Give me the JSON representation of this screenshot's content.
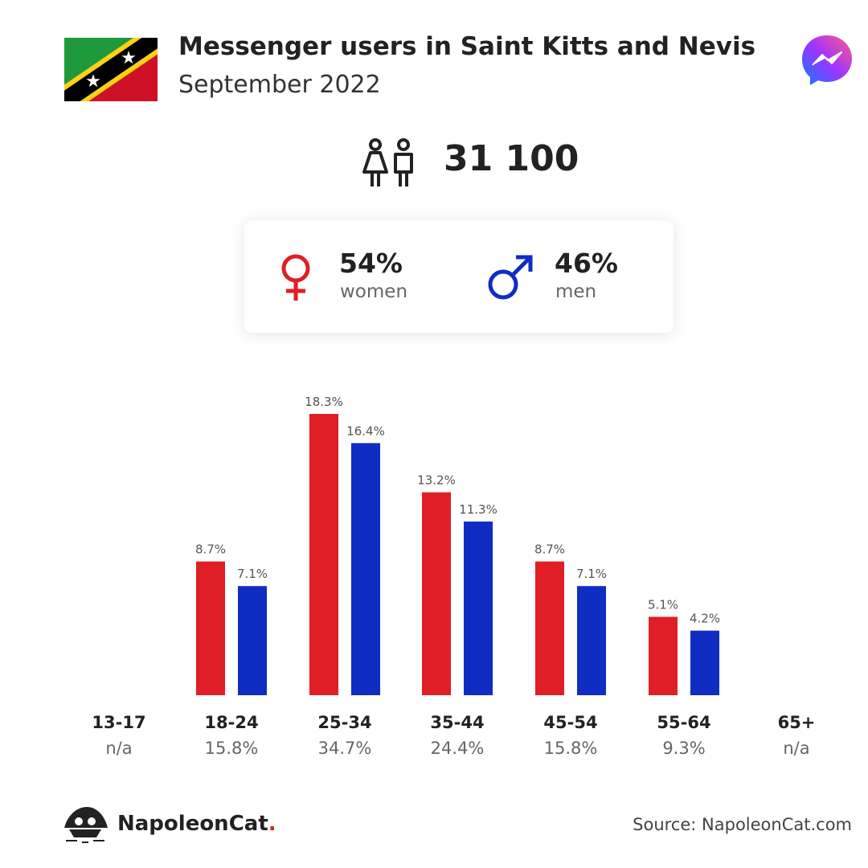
{
  "header": {
    "title": "Messenger users in Saint Kitts and Nevis",
    "subtitle": "September 2022"
  },
  "summary": {
    "total_users": "31 100"
  },
  "gender": {
    "women_pct": "54%",
    "women_label": "women",
    "men_pct": "46%",
    "men_label": "men"
  },
  "colors": {
    "women": "#e01e26",
    "men": "#0f2dc3"
  },
  "chart_data": {
    "type": "bar",
    "categories": [
      "13-17",
      "18-24",
      "25-34",
      "35-44",
      "45-54",
      "55-64",
      "65+"
    ],
    "series": [
      {
        "name": "women",
        "values": [
          null,
          8.7,
          18.3,
          13.2,
          8.7,
          5.1,
          null
        ],
        "labels": [
          "",
          "8.7%",
          "18.3%",
          "13.2%",
          "8.7%",
          "5.1%",
          ""
        ]
      },
      {
        "name": "men",
        "values": [
          null,
          7.1,
          16.4,
          11.3,
          7.1,
          4.2,
          null
        ],
        "labels": [
          "",
          "7.1%",
          "16.4%",
          "11.3%",
          "7.1%",
          "4.2%",
          ""
        ]
      }
    ],
    "group_totals": [
      "n/a",
      "15.8%",
      "34.7%",
      "24.4%",
      "15.8%",
      "9.3%",
      "n/a"
    ],
    "ylim": [
      0,
      18.3
    ],
    "grid": false
  },
  "footer": {
    "brand_name": "NapoleonCat",
    "brand_dot": ".",
    "source": "Source: NapoleonCat.com"
  }
}
